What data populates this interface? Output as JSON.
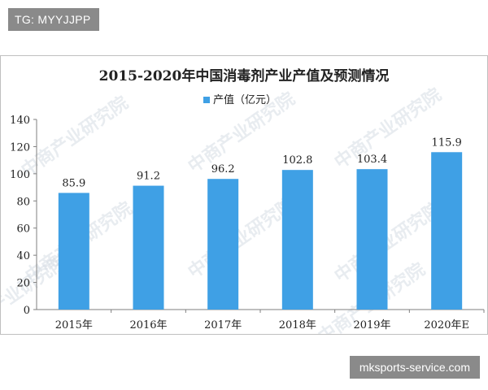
{
  "top_tag": "TG: MYYJJPP",
  "footer_tag": "mksports-service.com",
  "watermark": "中商产业研究院",
  "colors": {
    "bar": "#3fa0e5",
    "axis": "#7f7f7f",
    "text": "#222222"
  },
  "chart_data": {
    "type": "bar",
    "title": "2015-2020年中国消毒剂产业产值及预测情况",
    "legend": "产值（亿元）",
    "legend_position": "top",
    "categories": [
      "2015年",
      "2016年",
      "2017年",
      "2018年",
      "2019年",
      "2020年E"
    ],
    "values": [
      85.9,
      91.2,
      96.2,
      102.8,
      103.4,
      115.9
    ],
    "value_labels": [
      "85.9",
      "91.2",
      "96.2",
      "102.8",
      "103.4",
      "115.9"
    ],
    "y_ticks": [
      "0",
      "20",
      "40",
      "60",
      "80",
      "100",
      "120",
      "140"
    ],
    "ylim": [
      0,
      140
    ],
    "grid": false
  }
}
